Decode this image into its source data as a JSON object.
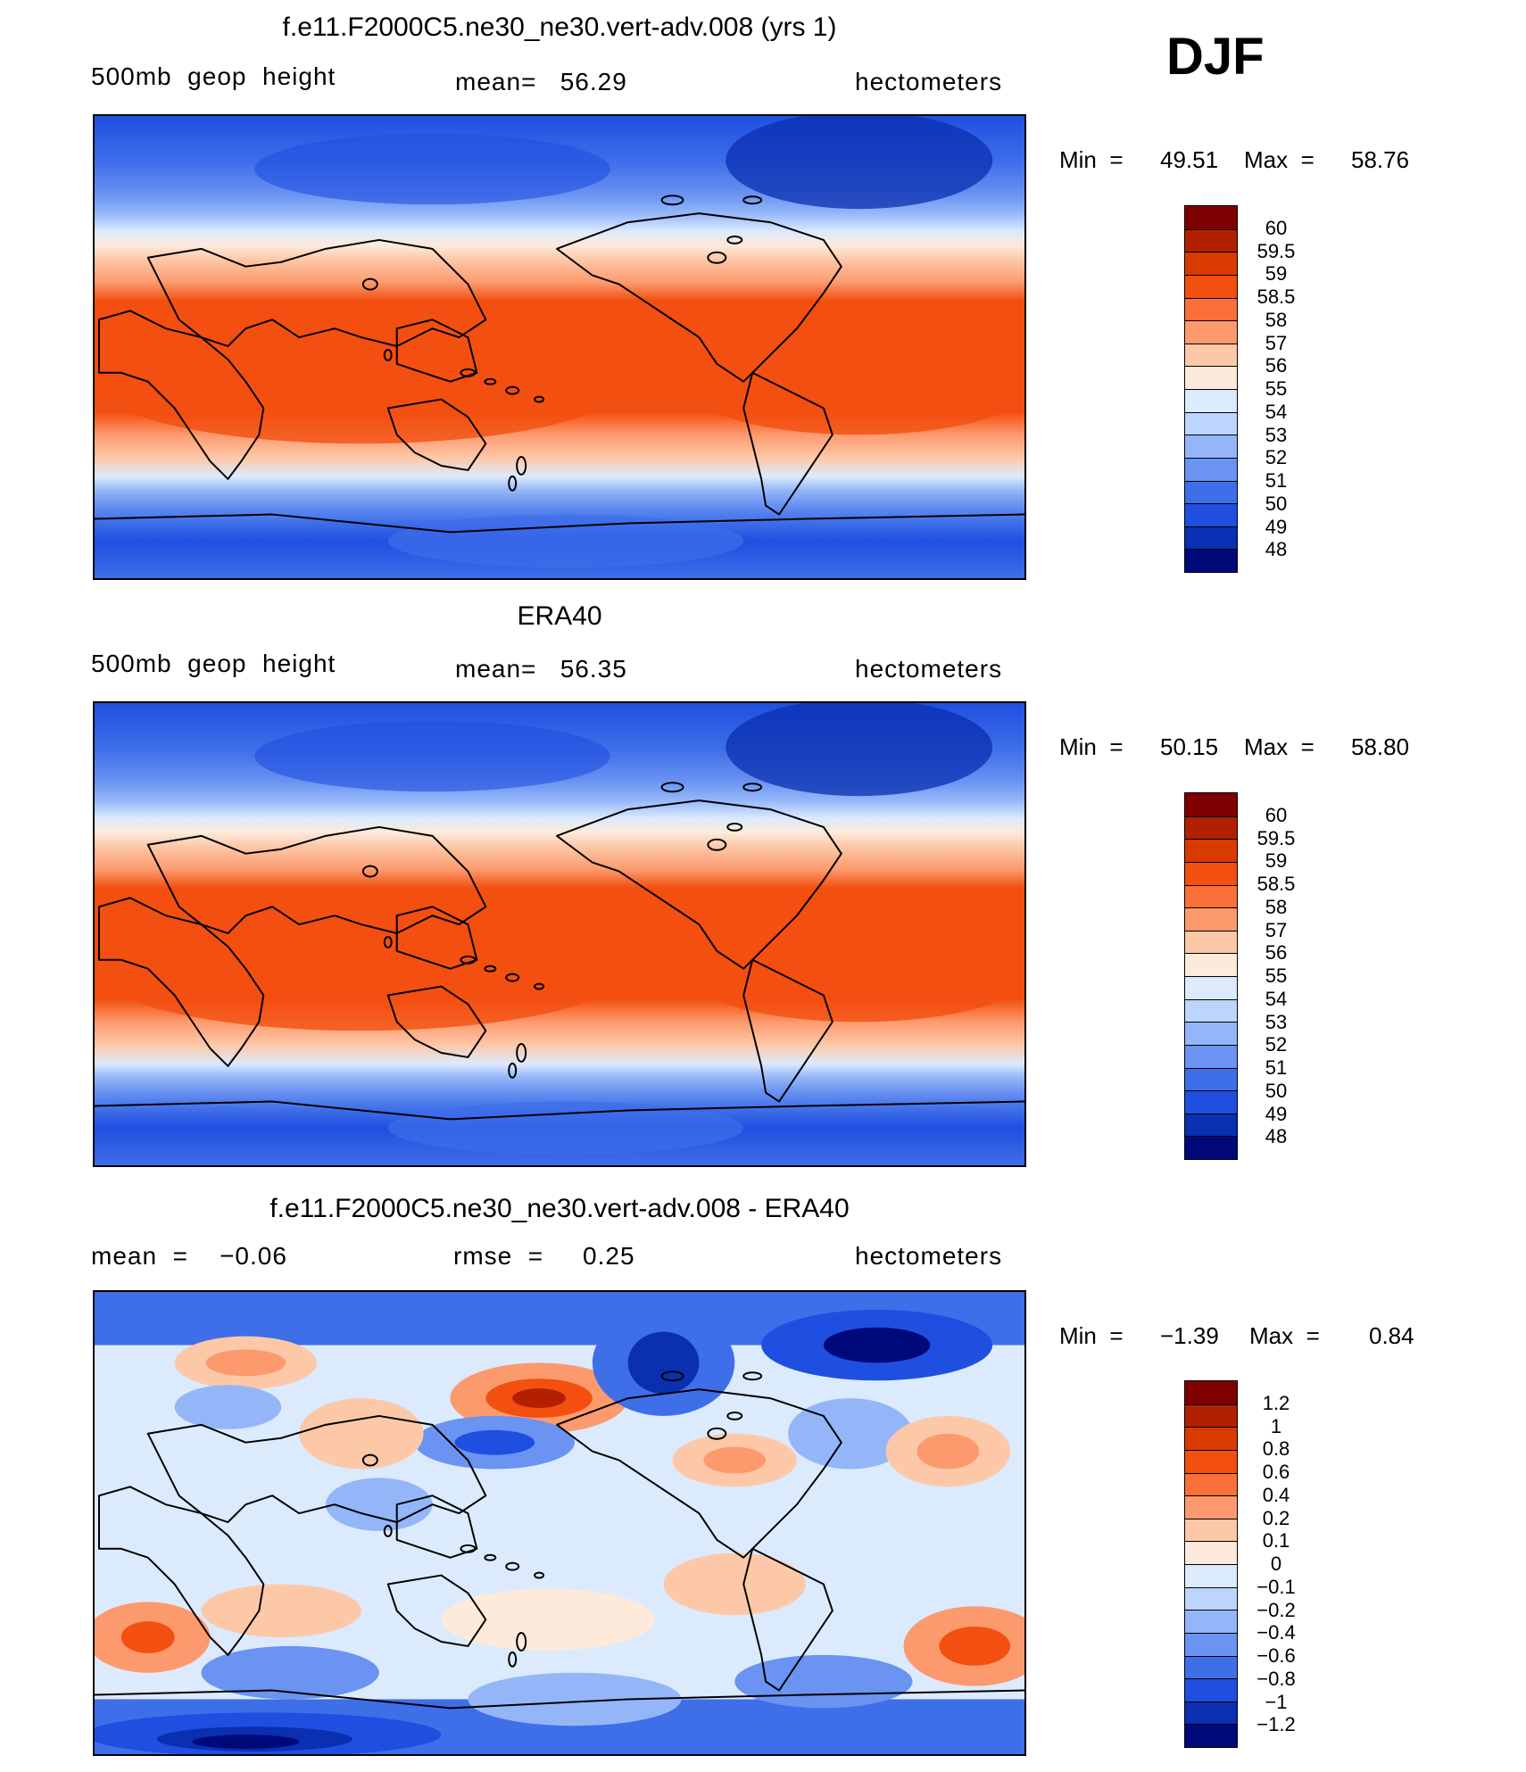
{
  "season": "DJF",
  "panels": [
    {
      "title": "f.e11.F2000C5.ne30_ne30.vert-adv.008 (yrs 1)",
      "left_label": "500mb  geop  height",
      "center_label": "mean=   56.29",
      "right_label": "hectometers",
      "stats": {
        "min_label": "Min  =",
        "min": "49.51",
        "max_label": "Max  =",
        "max": "58.76"
      },
      "field": "model"
    },
    {
      "title": "ERA40",
      "left_label": "500mb  geop  height",
      "center_label": "mean=   56.35",
      "right_label": "hectometers",
      "stats": {
        "min_label": "Min  =",
        "min": "50.15",
        "max_label": "Max  =",
        "max": "58.80"
      },
      "field": "obs"
    },
    {
      "title": "f.e11.F2000C5.ne30_ne30.vert-adv.008 - ERA40",
      "left_label": "mean  =    −0.06",
      "center_label": "rmse  =     0.25",
      "right_label": "hectometers",
      "stats": {
        "min_label": "Min  =",
        "min": "−1.39",
        "max_label": "Max  =",
        "max": "0.84"
      },
      "field": "diff"
    }
  ],
  "colorbars": {
    "abs": {
      "labels": [
        "60",
        "59.5",
        "59",
        "58.5",
        "58",
        "57",
        "56",
        "55",
        "54",
        "53",
        "52",
        "51",
        "50",
        "49",
        "48"
      ],
      "colors": [
        "#7f0000",
        "#b22000",
        "#d93a00",
        "#f24f10",
        "#fb6f3a",
        "#fc9a6e",
        "#fdc8a8",
        "#fdeadb",
        "#dceafd",
        "#bcd5fc",
        "#94b6f9",
        "#6a93f2",
        "#3f6ee9",
        "#1f4fe0",
        "#0a2fb0",
        "#00097a"
      ]
    },
    "diff": {
      "labels": [
        "1.2",
        "1",
        "0.8",
        "0.6",
        "0.4",
        "0.2",
        "0.1",
        "0",
        "−0.1",
        "−0.2",
        "−0.4",
        "−0.6",
        "−0.8",
        "−1",
        "−1.2"
      ],
      "colors": [
        "#7f0000",
        "#b22000",
        "#d93a00",
        "#f24f10",
        "#fb6f3a",
        "#fc9a6e",
        "#fdc8a8",
        "#fdeadb",
        "#dceafd",
        "#bcd5fc",
        "#94b6f9",
        "#6a93f2",
        "#3f6ee9",
        "#1f4fe0",
        "#0a2fb0",
        "#00097a"
      ]
    }
  }
}
